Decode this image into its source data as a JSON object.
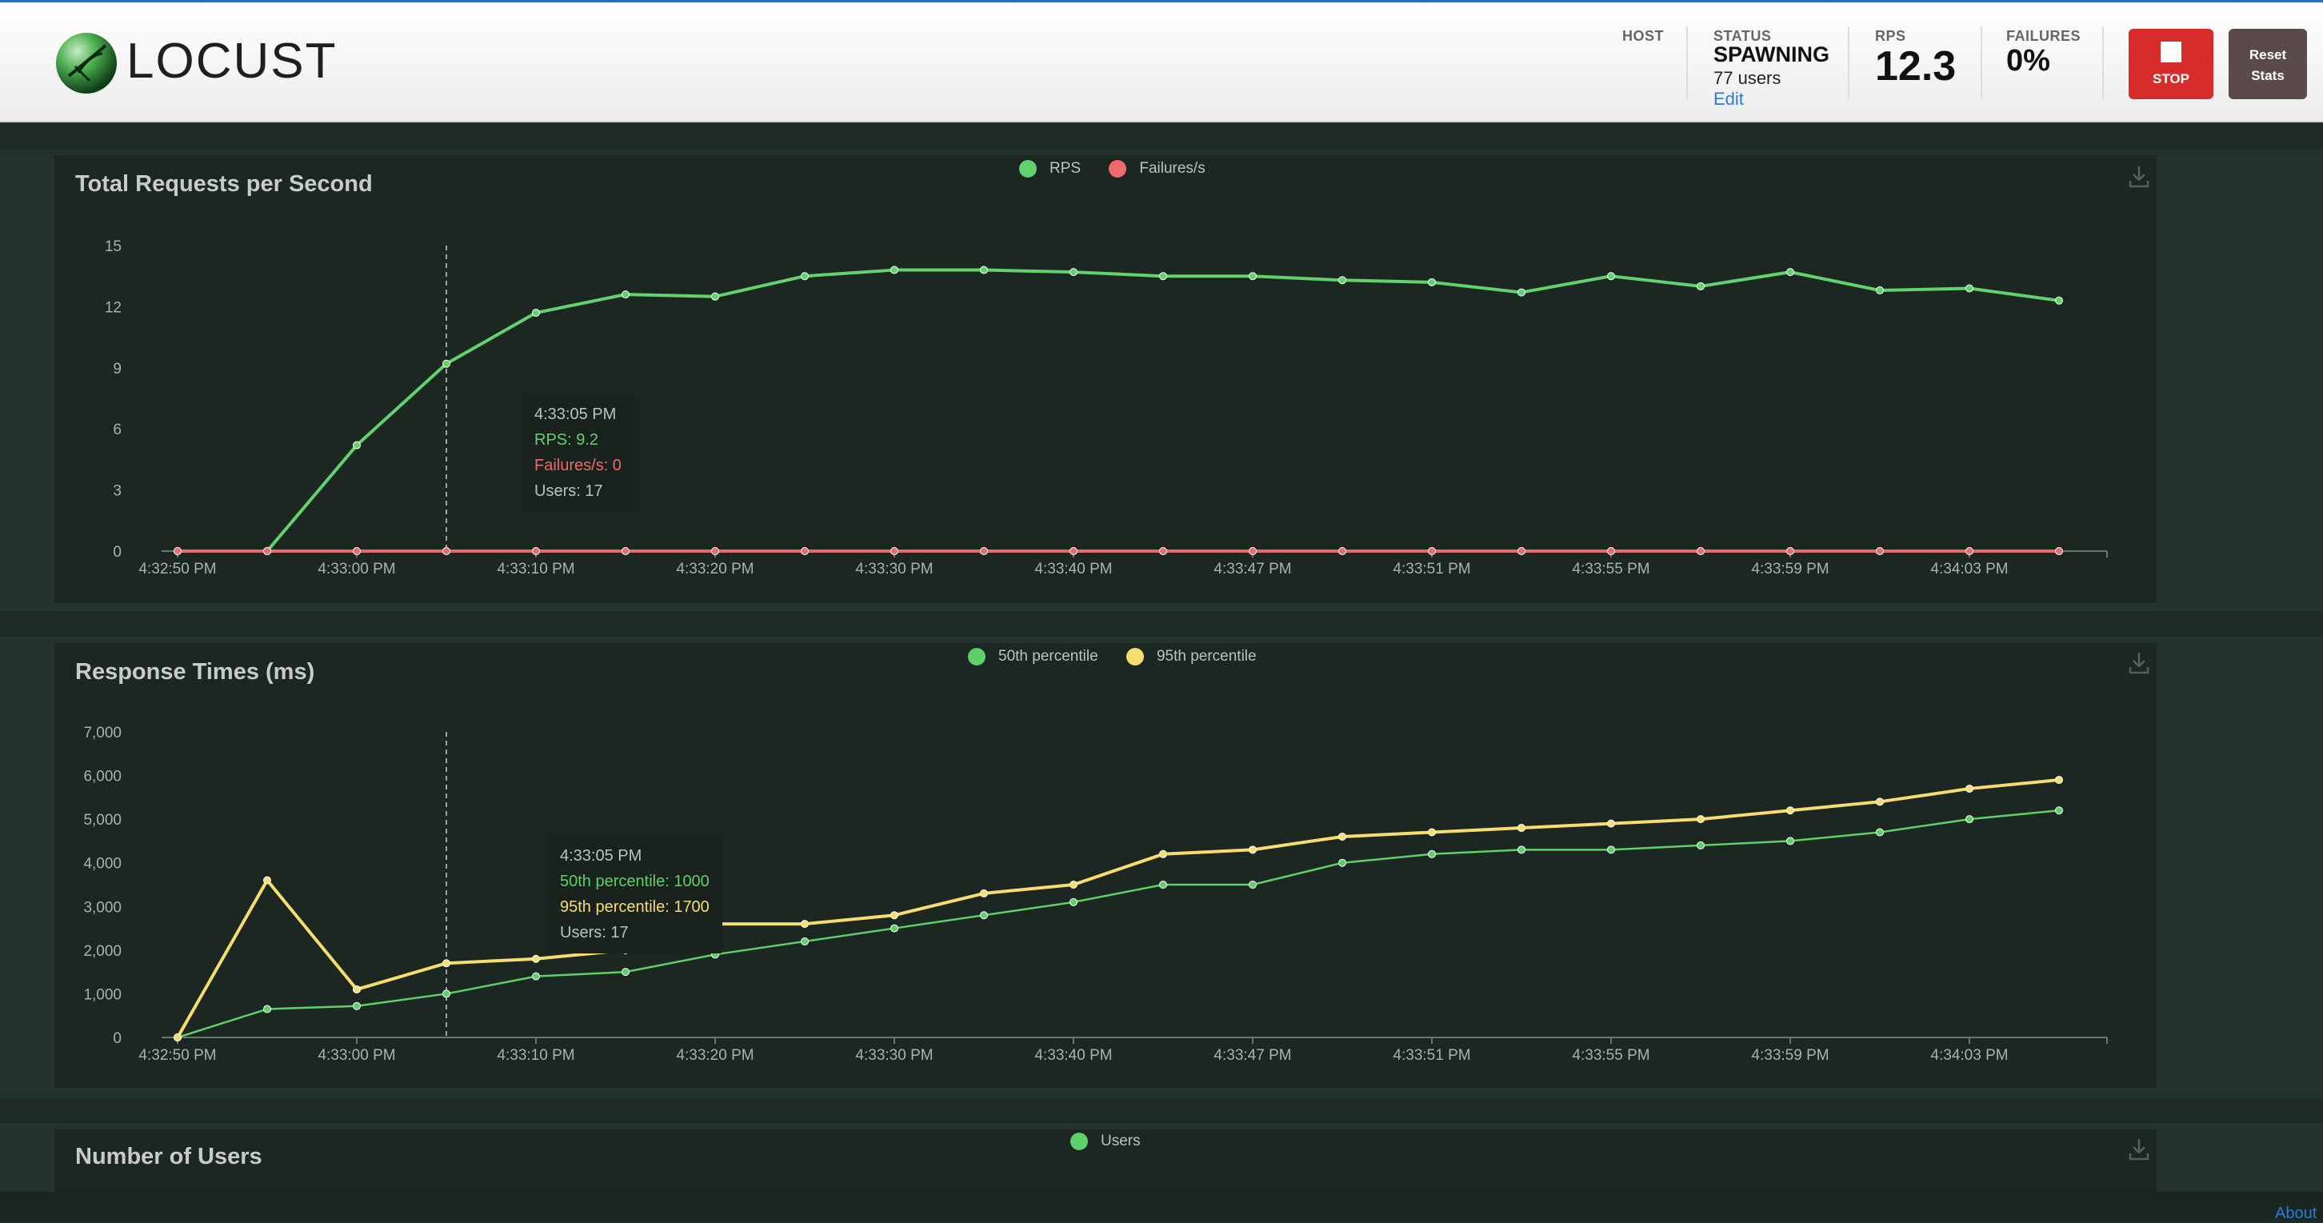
{
  "app": {
    "name": "LOCUST"
  },
  "header": {
    "host_label": "HOST",
    "status_label": "STATUS",
    "status_value": "SPAWNING",
    "users_text": "77 users",
    "edit_label": "Edit",
    "rps_label": "RPS",
    "rps_value": "12.3",
    "failures_label": "FAILURES",
    "failures_value": "0%",
    "stop_label": "STOP",
    "reset_label_1": "Reset",
    "reset_label_2": "Stats"
  },
  "colors": {
    "rps": "#62d26f",
    "failures": "#ef6b6b",
    "p50": "#5fcf6a",
    "p95": "#f7dc6f",
    "users": "#5fcf6a",
    "stop": "#d62c2c"
  },
  "icons": {
    "download": "download-icon",
    "logo": "locust-logo-icon"
  },
  "x_labels": [
    "4:32:50 PM",
    "4:33:00 PM",
    "4:33:10 PM",
    "4:33:20 PM",
    "4:33:30 PM",
    "4:33:40 PM",
    "4:33:47 PM",
    "4:33:51 PM",
    "4:33:55 PM",
    "4:33:59 PM",
    "4:34:03 PM"
  ],
  "charts": {
    "rps": {
      "title": "Total Requests per Second",
      "legend": [
        "RPS",
        "Failures/s"
      ],
      "tooltip": {
        "time": "4:33:05 PM",
        "line1": "RPS: 9.2",
        "line2": "Failures/s: 0",
        "line3": "Users: 17"
      }
    },
    "response": {
      "title": "Response Times (ms)",
      "legend": [
        "50th percentile",
        "95th percentile"
      ],
      "tooltip": {
        "time": "4:33:05 PM",
        "line1": "50th percentile: 1000",
        "line2": "95th percentile: 1700",
        "line3": "Users: 17"
      }
    },
    "users": {
      "title": "Number of Users",
      "legend": [
        "Users"
      ]
    }
  },
  "footer": {
    "about_label": "About"
  },
  "chart_data": [
    {
      "type": "line",
      "title": "Total Requests per Second",
      "x_tick_labels": [
        "4:32:50 PM",
        "4:33:00 PM",
        "4:33:10 PM",
        "4:33:20 PM",
        "4:33:30 PM",
        "4:33:40 PM",
        "4:33:47 PM",
        "4:33:51 PM",
        "4:33:55 PM",
        "4:33:59 PM",
        "4:34:03 PM"
      ],
      "ylim": [
        0,
        15
      ],
      "yticks": [
        0,
        3,
        6,
        9,
        12,
        15
      ],
      "series": [
        {
          "name": "RPS",
          "values": [
            0,
            0,
            5.2,
            9.2,
            11.7,
            12.6,
            12.5,
            13.5,
            13.8,
            13.8,
            13.7,
            13.5,
            13.5,
            13.3,
            13.2,
            12.7,
            13.5,
            13.0,
            13.7,
            12.8,
            12.9,
            12.3
          ]
        },
        {
          "name": "Failures/s",
          "values": [
            0,
            0,
            0,
            0,
            0,
            0,
            0,
            0,
            0,
            0,
            0,
            0,
            0,
            0,
            0,
            0,
            0,
            0,
            0,
            0,
            0,
            0
          ]
        }
      ],
      "hover_index": 3,
      "legend_position": "top-center",
      "grid": false
    },
    {
      "type": "line",
      "title": "Response Times (ms)",
      "x_tick_labels": [
        "4:32:50 PM",
        "4:33:00 PM",
        "4:33:10 PM",
        "4:33:20 PM",
        "4:33:30 PM",
        "4:33:40 PM",
        "4:33:47 PM",
        "4:33:51 PM",
        "4:33:55 PM",
        "4:33:59 PM",
        "4:34:03 PM"
      ],
      "ylim": [
        0,
        7000
      ],
      "yticks": [
        0,
        1000,
        2000,
        3000,
        4000,
        5000,
        6000,
        7000
      ],
      "series": [
        {
          "name": "50th percentile",
          "values": [
            0,
            650,
            720,
            1000,
            1400,
            1500,
            1900,
            2200,
            2500,
            2800,
            3100,
            3500,
            3500,
            4000,
            4200,
            4300,
            4300,
            4400,
            4500,
            4700,
            5000,
            5200
          ]
        },
        {
          "name": "95th percentile",
          "values": [
            0,
            3600,
            1100,
            1700,
            1800,
            2000,
            2600,
            2600,
            2800,
            3300,
            3500,
            4200,
            4300,
            4600,
            4700,
            4800,
            4900,
            5000,
            5200,
            5400,
            5700,
            5900
          ]
        }
      ],
      "hover_index": 3,
      "legend_position": "top-center",
      "grid": false
    }
  ]
}
